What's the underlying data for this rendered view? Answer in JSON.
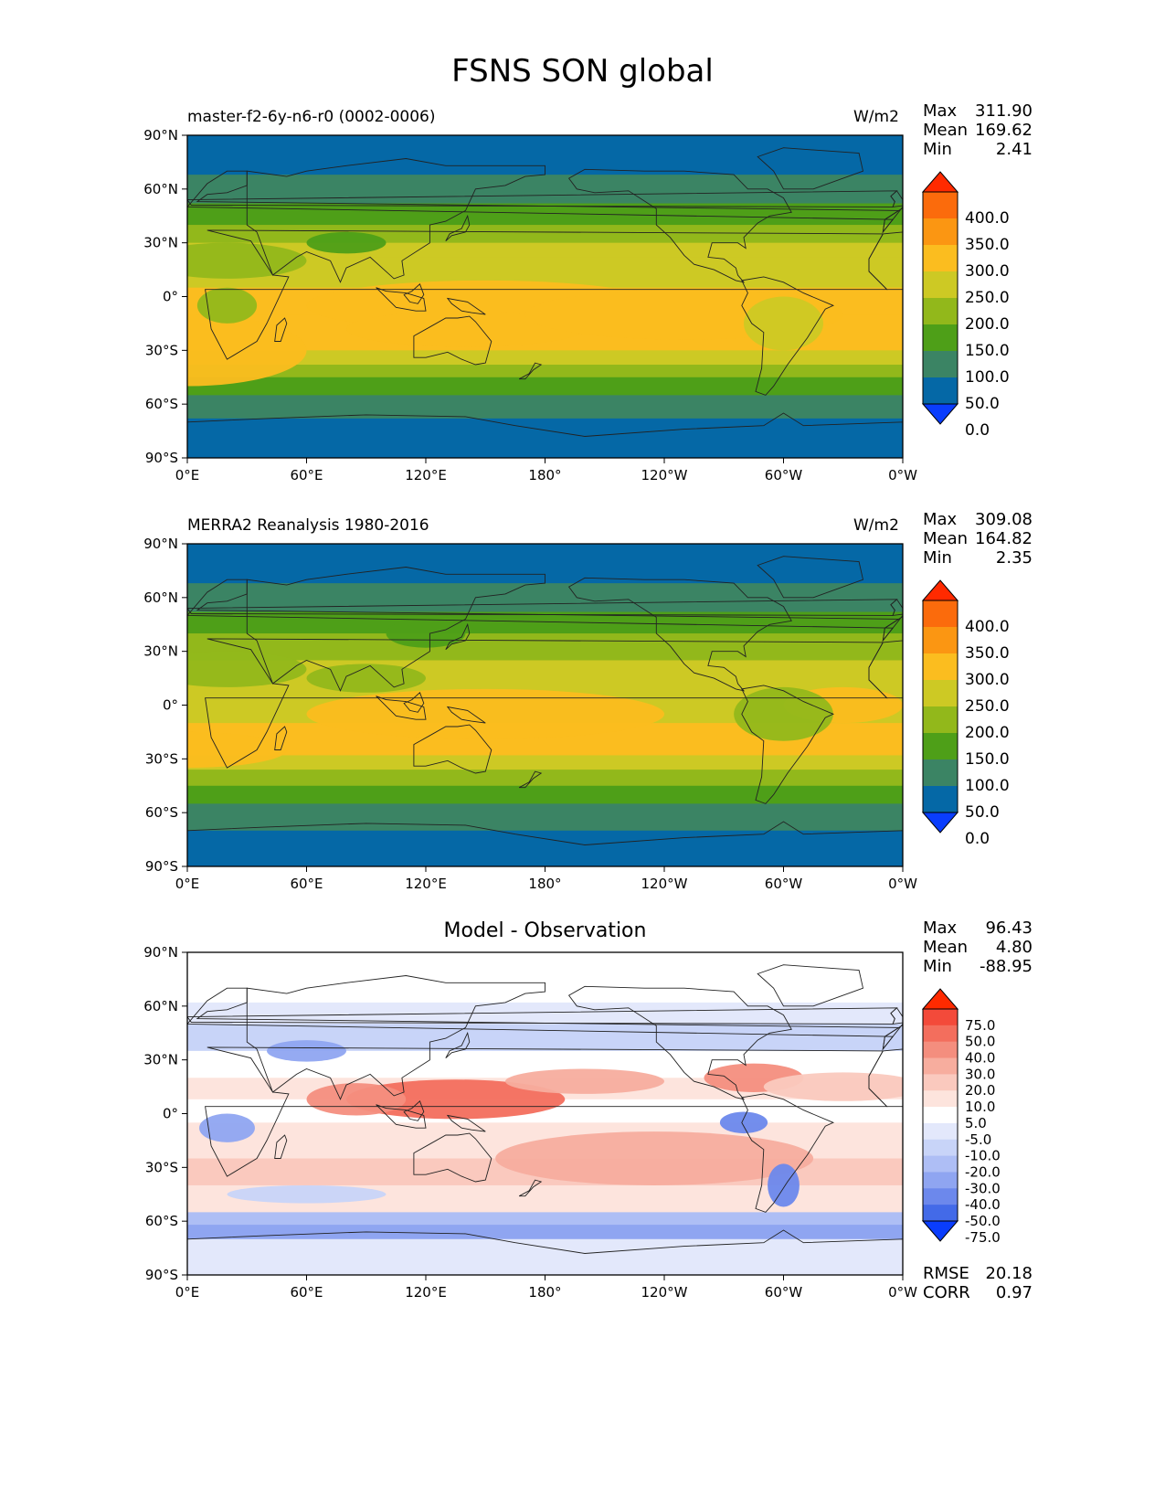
{
  "title": "FSNS SON global",
  "axes": {
    "lat_ticks": [
      "90°N",
      "60°N",
      "30°N",
      "0°",
      "30°S",
      "60°S",
      "90°S"
    ],
    "lon_ticks": [
      "0°E",
      "60°E",
      "120°E",
      "180°",
      "120°W",
      "60°W",
      "0°W"
    ]
  },
  "panels": [
    {
      "id": "model",
      "left_title": "master-f2-6y-n6-r0 (0002-0006)",
      "center_title": "",
      "units": "W/m2",
      "stats": [
        {
          "name": "Max",
          "value": "311.90"
        },
        {
          "name": "Mean",
          "value": "169.62"
        },
        {
          "name": "Min",
          "value": "2.41"
        }
      ],
      "colorbar": {
        "labels": [
          "400.0",
          "350.0",
          "300.0",
          "250.0",
          "200.0",
          "150.0",
          "100.0",
          "50.0",
          "0.0"
        ],
        "colors": [
          "#ff2a00",
          "#fb6b0c",
          "#fb9612",
          "#fbbd1f",
          "#cdc924",
          "#92b81b",
          "#4e9f18",
          "#3b8464",
          "#0568a6",
          "#0a3dfd"
        ]
      }
    },
    {
      "id": "reference",
      "left_title": "MERRA2 Reanalysis 1980-2016",
      "center_title": "",
      "units": "W/m2",
      "stats": [
        {
          "name": "Max",
          "value": "309.08"
        },
        {
          "name": "Mean",
          "value": "164.82"
        },
        {
          "name": "Min",
          "value": "2.35"
        }
      ],
      "colorbar": {
        "labels": [
          "400.0",
          "350.0",
          "300.0",
          "250.0",
          "200.0",
          "150.0",
          "100.0",
          "50.0",
          "0.0"
        ],
        "colors": [
          "#ff2a00",
          "#fb6b0c",
          "#fb9612",
          "#fbbd1f",
          "#cdc924",
          "#92b81b",
          "#4e9f18",
          "#3b8464",
          "#0568a6",
          "#0a3dfd"
        ]
      }
    },
    {
      "id": "difference",
      "left_title": "",
      "center_title": "Model - Observation",
      "units": "",
      "stats": [
        {
          "name": "Max",
          "value": "96.43"
        },
        {
          "name": "Mean",
          "value": "4.80"
        },
        {
          "name": "Min",
          "value": "-88.95"
        }
      ],
      "extra_stats": [
        {
          "name": "RMSE",
          "value": "20.18"
        },
        {
          "name": "CORR",
          "value": "0.97"
        }
      ],
      "colorbar": {
        "labels": [
          "75.0",
          "50.0",
          "40.0",
          "30.0",
          "20.0",
          "10.0",
          "5.0",
          "-5.0",
          "-10.0",
          "-20.0",
          "-30.0",
          "-40.0",
          "-50.0",
          "-75.0"
        ],
        "colors": [
          "#ff2a00",
          "#f34a3a",
          "#f36e5d",
          "#f48e7e",
          "#f7ad9e",
          "#fac9be",
          "#fde4dd",
          "#ffffff",
          "#e3e8fb",
          "#c8d4f8",
          "#aebef5",
          "#8fa5f1",
          "#6c88ec",
          "#436ae8",
          "#0a3dfd"
        ]
      }
    }
  ],
  "chart_data": [
    {
      "type": "heatmap",
      "title": "master-f2-6y-n6-r0 (0002-0006)",
      "units": "W/m2",
      "xlabel": "",
      "ylabel": "",
      "xlim": [
        0,
        360
      ],
      "ylim": [
        -90,
        90
      ],
      "contour_levels": [
        0,
        50,
        100,
        150,
        200,
        250,
        300,
        350,
        400
      ],
      "stats": {
        "max": 311.9,
        "mean": 169.62,
        "min": 2.41
      },
      "zonal_profile": {
        "lat": [
          90,
          75,
          60,
          50,
          40,
          30,
          15,
          0,
          -15,
          -30,
          -40,
          -50,
          -60,
          -75,
          -90
        ],
        "value": [
          20,
          40,
          75,
          125,
          175,
          215,
          240,
          250,
          260,
          245,
          180,
          125,
          75,
          30,
          20
        ]
      }
    },
    {
      "type": "heatmap",
      "title": "MERRA2 Reanalysis 1980-2016",
      "units": "W/m2",
      "xlabel": "",
      "ylabel": "",
      "xlim": [
        0,
        360
      ],
      "ylim": [
        -90,
        90
      ],
      "contour_levels": [
        0,
        50,
        100,
        150,
        200,
        250,
        300,
        350,
        400
      ],
      "stats": {
        "max": 309.08,
        "mean": 164.82,
        "min": 2.35
      },
      "zonal_profile": {
        "lat": [
          90,
          75,
          60,
          50,
          40,
          30,
          15,
          0,
          -15,
          -30,
          -40,
          -50,
          -60,
          -75,
          -90
        ],
        "value": [
          20,
          40,
          75,
          125,
          170,
          205,
          225,
          230,
          250,
          235,
          175,
          120,
          75,
          30,
          20
        ]
      }
    },
    {
      "type": "heatmap",
      "title": "Model - Observation",
      "units": "",
      "xlabel": "",
      "ylabel": "",
      "xlim": [
        0,
        360
      ],
      "ylim": [
        -90,
        90
      ],
      "contour_levels": [
        -75,
        -50,
        -40,
        -30,
        -20,
        -10,
        -5,
        5,
        10,
        20,
        30,
        40,
        50,
        75
      ],
      "stats": {
        "max": 96.43,
        "mean": 4.8,
        "min": -88.95,
        "rmse": 20.18,
        "corr": 0.97
      },
      "zonal_profile": {
        "lat": [
          90,
          60,
          30,
          10,
          0,
          -10,
          -30,
          -50,
          -60,
          -75,
          -90
        ],
        "value": [
          0,
          -5,
          0,
          20,
          10,
          0,
          15,
          5,
          -10,
          -5,
          0
        ]
      }
    }
  ]
}
